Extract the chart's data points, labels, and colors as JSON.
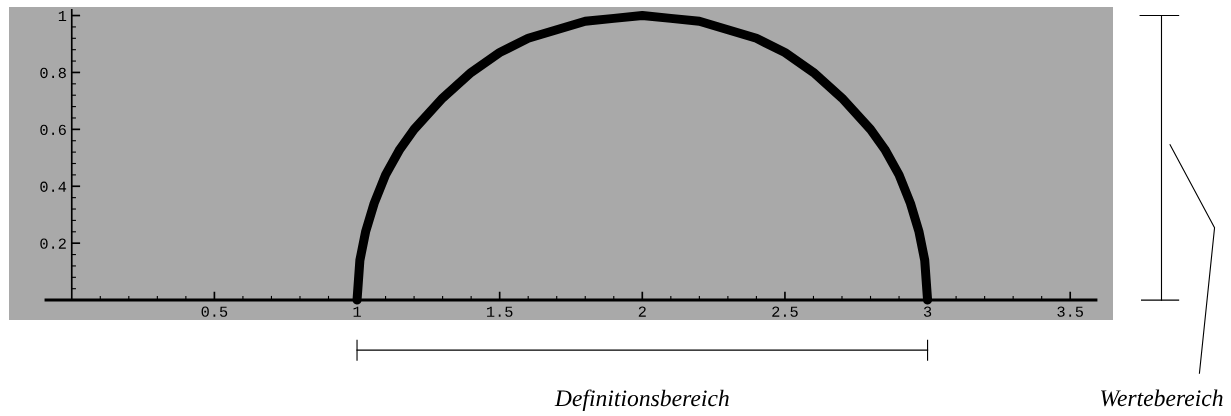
{
  "chart_data": {
    "type": "line",
    "x": [
      1,
      1.01,
      1.03,
      1.06,
      1.1,
      1.15,
      1.2,
      1.3,
      1.4,
      1.5,
      1.6,
      1.7,
      1.8,
      1.9,
      2,
      2.1,
      2.2,
      2.3,
      2.4,
      2.5,
      2.6,
      2.7,
      2.8,
      2.85,
      2.9,
      2.94,
      2.97,
      2.99,
      3
    ],
    "series": [
      {
        "color": "#000000",
        "values": [
          0,
          0.14,
          0.24,
          0.34,
          0.44,
          0.53,
          0.6,
          0.71,
          0.8,
          0.87,
          0.92,
          0.95,
          0.98,
          0.99,
          1,
          0.99,
          0.98,
          0.95,
          0.92,
          0.87,
          0.8,
          0.71,
          0.6,
          0.53,
          0.44,
          0.34,
          0.24,
          0.14,
          0
        ]
      }
    ],
    "xlim": [
      -0.22,
      3.65
    ],
    "ylim": [
      -0.07,
      1.03
    ],
    "xticks": [
      0.5,
      1,
      1.5,
      2,
      2.5,
      3,
      3.5
    ],
    "yticks": [
      0.2,
      0.4,
      0.6,
      0.8,
      1
    ],
    "annotations": [
      "Definitionsbereich",
      "Wertebereich"
    ],
    "grid": false,
    "legend": false,
    "marker": "none",
    "line_style": "solid"
  }
}
